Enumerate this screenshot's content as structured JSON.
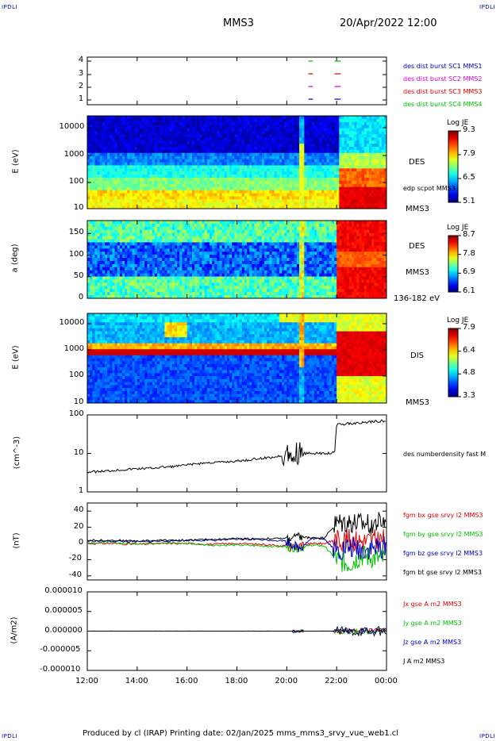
{
  "corners": {
    "tl": "IPDLI",
    "tr": "IPDLI",
    "bl": "IPDLI",
    "br": "IPDLI"
  },
  "header": {
    "spacecraft": "MMS3",
    "date": "20/Apr/2022 12:00"
  },
  "footer": "Produced by cl (IRAP)   Printing date: 02/Jan/2025   mms_mms3_srvy_vue_web1.cl",
  "colors": {
    "blue": "#0000c0",
    "magenta": "#d000d0",
    "red": "#e00000",
    "green": "#00c000",
    "black": "#000000"
  },
  "chart_data": [
    {
      "type": "line",
      "panel": "burst",
      "ytick_labels": [
        "4",
        "3",
        "2",
        "1"
      ],
      "legend": [
        {
          "label": "des dist burst SC1 MMS1",
          "color": "#0000c0"
        },
        {
          "label": "des dist burst SC2 MMS2",
          "color": "#d000d0"
        },
        {
          "label": "des dist burst SC3 MMS3",
          "color": "#e00000"
        },
        {
          "label": "des dist burst SC4 MMS4",
          "color": "#00c000"
        }
      ],
      "intervals": [
        {
          "level": 4,
          "x": [
            "20:52",
            "21:03"
          ],
          "color": "#00c000"
        },
        {
          "level": 4,
          "x": [
            "21:55",
            "22:10"
          ],
          "color": "#00c000"
        },
        {
          "level": 3,
          "x": [
            "20:52",
            "21:03"
          ],
          "color": "#e00000"
        },
        {
          "level": 3,
          "x": [
            "21:55",
            "22:10"
          ],
          "color": "#e00000"
        },
        {
          "level": 2,
          "x": [
            "20:52",
            "21:03"
          ],
          "color": "#d000d0"
        },
        {
          "level": 2,
          "x": [
            "21:55",
            "22:10"
          ],
          "color": "#d000d0"
        },
        {
          "level": 1,
          "x": [
            "20:52",
            "21:03"
          ],
          "color": "#0000c0"
        },
        {
          "level": 1,
          "x": [
            "21:55",
            "22:10"
          ],
          "color": "#0000c0"
        }
      ]
    },
    {
      "type": "heatmap",
      "panel": "des-energy",
      "ylabel": "E (eV)",
      "yscale": "log",
      "ylim": [
        10,
        30000
      ],
      "ytick_labels": [
        "10000",
        "1000",
        "100",
        "10"
      ],
      "colorbar": {
        "title": "Log JE",
        "tick_labels": [
          "9.3",
          "7.9",
          "6.5",
          "5.1"
        ]
      },
      "labels": [
        "DES",
        "edp scpot MMS3",
        "MMS3"
      ]
    },
    {
      "type": "heatmap",
      "panel": "des-pitch",
      "ylabel": "a (deg)",
      "ylim": [
        0,
        180
      ],
      "ytick_labels": [
        "150",
        "100",
        "50",
        "0"
      ],
      "colorbar": {
        "title": "Log JE",
        "tick_labels": [
          "8.7",
          "7.8",
          "6.9",
          "6.1"
        ]
      },
      "labels": [
        "DES",
        "MMS3",
        "136-182 eV"
      ]
    },
    {
      "type": "heatmap",
      "panel": "dis-energy",
      "ylabel": "E (eV)",
      "yscale": "log",
      "ylim": [
        10,
        30000
      ],
      "ytick_labels": [
        "10000",
        "1000",
        "100",
        "10"
      ],
      "colorbar": {
        "title": "Log JE",
        "tick_labels": [
          "7.9",
          "6.4",
          "4.8",
          "3.3"
        ]
      },
      "labels": [
        "DIS",
        "MMS3"
      ]
    },
    {
      "type": "line",
      "panel": "density",
      "ylabel": "(cm^-3)",
      "yscale": "log",
      "ylim": [
        1,
        100
      ],
      "ytick_labels": [
        "100",
        "10",
        "1"
      ],
      "series": [
        {
          "name": "des numberdensity fast M",
          "color": "#000000",
          "x": [
            "12:00",
            "12:30",
            "13:00",
            "13:30",
            "14:00",
            "14:30",
            "15:00",
            "15:30",
            "16:00",
            "16:30",
            "17:00",
            "17:30",
            "18:00",
            "18:30",
            "19:00",
            "19:30",
            "20:00",
            "20:20",
            "20:40",
            "21:00",
            "21:30",
            "21:55",
            "22:00",
            "22:30",
            "23:00",
            "23:30",
            "00:00"
          ],
          "y": [
            3.3,
            3.4,
            3.6,
            3.8,
            4.0,
            4.1,
            4.4,
            4.6,
            5.0,
            5.5,
            5.8,
            6.0,
            6.3,
            6.8,
            7.5,
            8.0,
            9.5,
            10,
            10,
            10,
            10,
            10.5,
            55,
            60,
            62,
            68,
            70
          ]
        }
      ]
    },
    {
      "type": "line",
      "panel": "field",
      "ylabel": "(nT)",
      "ylim": [
        -45,
        50
      ],
      "ytick_labels": [
        "40",
        "20",
        "0",
        "-20",
        "-40"
      ],
      "series": [
        {
          "name": "fgm bx gse srvy l2 MMS3",
          "color": "#e00000",
          "x": [
            "12:00",
            "13:00",
            "14:00",
            "15:00",
            "16:00",
            "17:00",
            "18:00",
            "19:00",
            "20:00",
            "20:30",
            "21:00",
            "21:30",
            "22:00",
            "22:30",
            "23:00",
            "23:30",
            "00:00"
          ],
          "y": [
            0,
            0,
            -1,
            0,
            0,
            -1,
            0,
            -1,
            -3,
            -4,
            0,
            0,
            5,
            5,
            3,
            4,
            5
          ]
        },
        {
          "name": "fgm by gse srvy l2 MMS3",
          "color": "#00c000",
          "x": [
            "12:00",
            "13:00",
            "14:00",
            "15:00",
            "16:00",
            "17:00",
            "18:00",
            "19:00",
            "20:00",
            "20:30",
            "21:00",
            "21:30",
            "22:00",
            "22:30",
            "23:00",
            "23:30",
            "00:00"
          ],
          "y": [
            1,
            1,
            0,
            1,
            0,
            -2,
            -2,
            -3,
            -4,
            -5,
            -2,
            -3,
            -20,
            -25,
            -15,
            -18,
            -20
          ]
        },
        {
          "name": "fgm bz gse srvy l2 MMS3",
          "color": "#0000c0",
          "x": [
            "12:00",
            "13:00",
            "14:00",
            "15:00",
            "16:00",
            "17:00",
            "18:00",
            "19:00",
            "20:00",
            "20:30",
            "21:00",
            "21:30",
            "22:00",
            "22:30",
            "23:00",
            "23:30",
            "00:00"
          ],
          "y": [
            3,
            3,
            2,
            3,
            4,
            4,
            5,
            5,
            3,
            -6,
            6,
            6,
            -10,
            -5,
            -8,
            -6,
            -5
          ]
        },
        {
          "name": "fgm bt gse srvy l2 MMS3",
          "color": "#000000",
          "x": [
            "12:00",
            "13:00",
            "14:00",
            "15:00",
            "16:00",
            "17:00",
            "18:00",
            "19:00",
            "20:00",
            "20:30",
            "21:00",
            "21:30",
            "22:00",
            "22:30",
            "23:00",
            "23:30",
            "00:00"
          ],
          "y": [
            4,
            4,
            3,
            4,
            4,
            5,
            6,
            6,
            6,
            8,
            7,
            7,
            25,
            26,
            24,
            25,
            27
          ]
        }
      ]
    },
    {
      "type": "line",
      "panel": "current",
      "ylabel": "(A/m2)",
      "xlabel": "",
      "ylim": [
        -1e-05,
        1e-05
      ],
      "ytick_labels": [
        "0.000010",
        "0.000005",
        "0.000000",
        "-0.000005",
        "-0.000010"
      ],
      "xtick_labels": [
        "12:00",
        "14:00",
        "16:00",
        "18:00",
        "20:00",
        "22:00",
        "00:00"
      ],
      "series": [
        {
          "name": "Jx gse A m2 MMS3",
          "color": "#e00000"
        },
        {
          "name": "Jy gse A m2 MMS3",
          "color": "#00c000"
        },
        {
          "name": "Jz gse A m2 MMS3",
          "color": "#0000c0"
        },
        {
          "name": "J A m2 MMS3",
          "color": "#000000"
        }
      ]
    }
  ]
}
